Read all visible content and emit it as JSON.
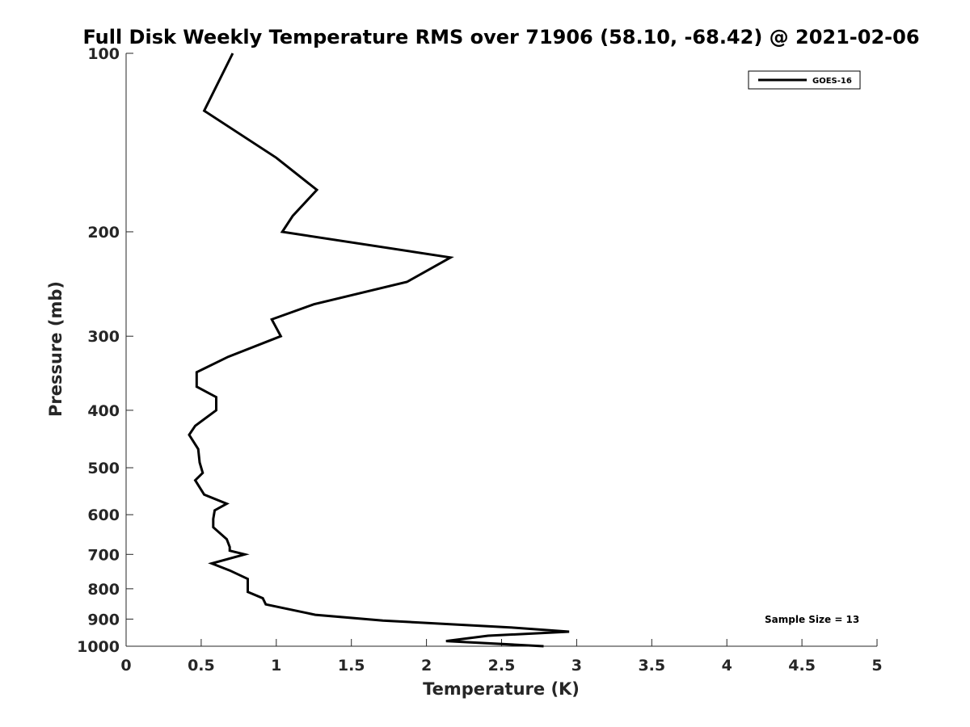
{
  "chart_data": {
    "type": "line",
    "title": "Full Disk Weekly Temperature RMS over 71906 (58.10, -68.42) @ 2021-02-06",
    "xlabel": "Temperature (K)",
    "ylabel": "Pressure (mb)",
    "xlim": [
      0,
      5
    ],
    "ylim": [
      100,
      1000
    ],
    "yscale": "log",
    "y_reversed": true,
    "grid": false,
    "legend_placement": "top-right",
    "x_ticks": [
      0,
      0.5,
      1,
      1.5,
      2,
      2.5,
      3,
      3.5,
      4,
      4.5,
      5
    ],
    "x_tick_labels": [
      "0",
      "0.5",
      "1",
      "1.5",
      "2",
      "2.5",
      "3",
      "3.5",
      "4",
      "4.5",
      "5"
    ],
    "y_ticks": [
      100,
      200,
      300,
      400,
      500,
      600,
      700,
      800,
      900,
      1000
    ],
    "y_tick_labels": [
      "100",
      "200",
      "300",
      "400",
      "500",
      "600",
      "700",
      "800",
      "900",
      "1000"
    ],
    "series": [
      {
        "name": "GOES-16",
        "color": "#000000",
        "points": [
          [
            0.71,
            100
          ],
          [
            0.52,
            125
          ],
          [
            1.0,
            150
          ],
          [
            1.27,
            170
          ],
          [
            1.11,
            188
          ],
          [
            1.04,
            200
          ],
          [
            2.16,
            221
          ],
          [
            1.87,
            243
          ],
          [
            1.25,
            265
          ],
          [
            0.97,
            281
          ],
          [
            1.03,
            300
          ],
          [
            0.68,
            325
          ],
          [
            0.47,
            345
          ],
          [
            0.47,
            365
          ],
          [
            0.6,
            380
          ],
          [
            0.6,
            400
          ],
          [
            0.46,
            425
          ],
          [
            0.42,
            440
          ],
          [
            0.48,
            465
          ],
          [
            0.49,
            490
          ],
          [
            0.51,
            510
          ],
          [
            0.46,
            525
          ],
          [
            0.52,
            555
          ],
          [
            0.67,
            575
          ],
          [
            0.59,
            590
          ],
          [
            0.58,
            610
          ],
          [
            0.58,
            630
          ],
          [
            0.67,
            660
          ],
          [
            0.69,
            680
          ],
          [
            0.69,
            690
          ],
          [
            0.79,
            700
          ],
          [
            0.57,
            725
          ],
          [
            0.69,
            745
          ],
          [
            0.81,
            770
          ],
          [
            0.81,
            810
          ],
          [
            0.91,
            830
          ],
          [
            0.93,
            850
          ],
          [
            1.26,
            885
          ],
          [
            1.71,
            905
          ],
          [
            2.57,
            930
          ],
          [
            2.95,
            945
          ],
          [
            2.41,
            960
          ],
          [
            2.13,
            980
          ],
          [
            2.78,
            1000
          ]
        ]
      }
    ],
    "annotations": [
      "Sample Size = 13"
    ]
  }
}
